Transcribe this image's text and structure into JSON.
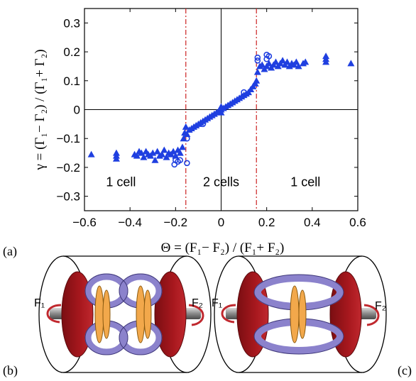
{
  "chart_data": {
    "type": "scatter",
    "xlabel": "Θ = (F₁− F₂) / (F₁+ F₂)",
    "ylabel": "γ = (Γ₁− Γ₂) / (Γ₁+ Γ₂)",
    "xlim": [
      -0.6,
      0.6
    ],
    "ylim": [
      -0.35,
      0.35
    ],
    "x_ticks": [
      "−0.6",
      "−0.4",
      "−0.2",
      "0",
      "0.2",
      "0.4",
      "0.6"
    ],
    "x_tick_values": [
      -0.6,
      -0.4,
      -0.2,
      0,
      0.2,
      0.4,
      0.6
    ],
    "y_ticks": [
      "−0.3",
      "−0.2",
      "−0.1",
      "0",
      "0.1",
      "0.2",
      "0.3"
    ],
    "y_tick_values": [
      -0.3,
      -0.2,
      -0.1,
      0,
      0.1,
      0.2,
      0.3
    ],
    "thresholds": [
      -0.155,
      0.155
    ],
    "regions": [
      {
        "label": "1 cell",
        "x": -0.44,
        "y": -0.265
      },
      {
        "label": "2 cells",
        "x": 0.0,
        "y": -0.265
      },
      {
        "label": "1 cell",
        "x": 0.37,
        "y": -0.265
      }
    ],
    "series": [
      {
        "marker": "triangle",
        "color": "#1f3fe0",
        "points": [
          [
            -0.57,
            -0.155
          ],
          [
            -0.46,
            -0.16
          ],
          [
            -0.46,
            -0.17
          ],
          [
            -0.46,
            -0.15
          ],
          [
            -0.38,
            -0.155
          ],
          [
            -0.37,
            -0.16
          ],
          [
            -0.36,
            -0.145
          ],
          [
            -0.35,
            -0.15
          ],
          [
            -0.34,
            -0.165
          ],
          [
            -0.33,
            -0.145
          ],
          [
            -0.32,
            -0.155
          ],
          [
            -0.31,
            -0.16
          ],
          [
            -0.3,
            -0.15
          ],
          [
            -0.29,
            -0.175
          ],
          [
            -0.28,
            -0.145
          ],
          [
            -0.27,
            -0.16
          ],
          [
            -0.26,
            -0.155
          ],
          [
            -0.25,
            -0.14
          ],
          [
            -0.24,
            -0.165
          ],
          [
            -0.23,
            -0.15
          ],
          [
            -0.22,
            -0.155
          ],
          [
            -0.21,
            -0.145
          ],
          [
            -0.2,
            -0.16
          ],
          [
            -0.19,
            -0.14
          ],
          [
            -0.18,
            -0.15
          ],
          [
            -0.17,
            -0.13
          ],
          [
            -0.165,
            -0.1
          ],
          [
            -0.16,
            -0.08
          ],
          [
            -0.155,
            -0.06
          ],
          [
            -0.15,
            -0.085
          ],
          [
            -0.14,
            -0.07
          ],
          [
            -0.13,
            -0.065
          ],
          [
            -0.12,
            -0.06
          ],
          [
            -0.11,
            -0.055
          ],
          [
            -0.1,
            -0.05
          ],
          [
            -0.09,
            -0.045
          ],
          [
            -0.08,
            -0.04
          ],
          [
            -0.07,
            -0.035
          ],
          [
            -0.06,
            -0.03
          ],
          [
            -0.05,
            -0.025
          ],
          [
            -0.04,
            -0.02
          ],
          [
            -0.03,
            -0.015
          ],
          [
            -0.02,
            -0.01
          ],
          [
            -0.01,
            -0.005
          ],
          [
            0.0,
            0.0
          ],
          [
            0.0,
            0.01
          ],
          [
            0.0,
            -0.01
          ],
          [
            0.01,
            0.005
          ],
          [
            0.02,
            0.01
          ],
          [
            0.03,
            0.015
          ],
          [
            0.04,
            0.02
          ],
          [
            0.05,
            0.025
          ],
          [
            0.06,
            0.03
          ],
          [
            0.07,
            0.035
          ],
          [
            0.08,
            0.04
          ],
          [
            0.09,
            0.045
          ],
          [
            0.1,
            0.05
          ],
          [
            0.11,
            0.055
          ],
          [
            0.12,
            0.06
          ],
          [
            0.13,
            0.07
          ],
          [
            0.14,
            0.08
          ],
          [
            0.15,
            0.09
          ],
          [
            0.155,
            0.1
          ],
          [
            0.16,
            0.13
          ],
          [
            0.17,
            0.15
          ],
          [
            0.18,
            0.155
          ],
          [
            0.19,
            0.14
          ],
          [
            0.2,
            0.15
          ],
          [
            0.21,
            0.16
          ],
          [
            0.22,
            0.145
          ],
          [
            0.23,
            0.155
          ],
          [
            0.24,
            0.165
          ],
          [
            0.25,
            0.15
          ],
          [
            0.26,
            0.16
          ],
          [
            0.27,
            0.17
          ],
          [
            0.28,
            0.155
          ],
          [
            0.29,
            0.165
          ],
          [
            0.3,
            0.15
          ],
          [
            0.31,
            0.16
          ],
          [
            0.32,
            0.155
          ],
          [
            0.33,
            0.165
          ],
          [
            0.34,
            0.15
          ],
          [
            0.36,
            0.16
          ],
          [
            0.37,
            0.165
          ],
          [
            0.46,
            0.165
          ],
          [
            0.46,
            0.175
          ],
          [
            0.46,
            0.185
          ],
          [
            0.57,
            0.16
          ]
        ]
      },
      {
        "marker": "circle",
        "color": "#1f3fe0",
        "points": [
          [
            -0.205,
            -0.19
          ],
          [
            -0.2,
            -0.175
          ],
          [
            -0.19,
            -0.18
          ],
          [
            -0.18,
            -0.175
          ],
          [
            -0.15,
            -0.185
          ],
          [
            -0.15,
            -0.1
          ],
          [
            -0.08,
            -0.05
          ],
          [
            0.1,
            0.06
          ],
          [
            0.16,
            0.18
          ],
          [
            0.2,
            0.175
          ],
          [
            0.21,
            0.185
          ],
          [
            0.2,
            0.19
          ],
          [
            0.16,
            0.17
          ]
        ]
      }
    ]
  },
  "panels": {
    "a": "(a)",
    "b": "(b)",
    "c": "(c)"
  },
  "diagram_b": {
    "left_force": "F₁",
    "right_force": "F₂"
  },
  "diagram_c": {
    "left_force": "F₁",
    "right_force": "F₂"
  },
  "colors": {
    "marker": "#1f3fe0",
    "threshold": "#cc2222",
    "disk": "#a8181e",
    "vortex": "#8b82cc",
    "vortex_edge": "#3e3778",
    "disk_orange": "#f2a84b"
  }
}
